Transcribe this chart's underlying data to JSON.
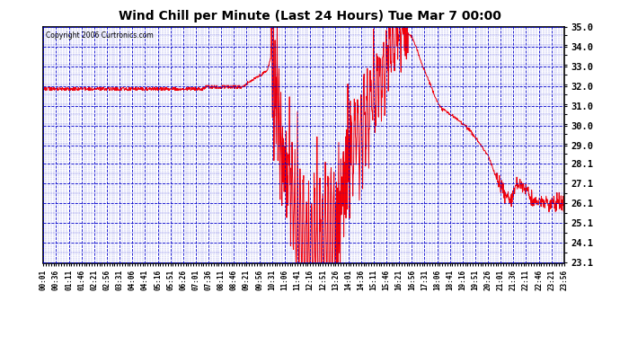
{
  "title": "Wind Chill per Minute (Last 24 Hours) Tue Mar 7 00:00",
  "copyright": "Copyright 2006 Curtronics.com",
  "line_color": "#ff0000",
  "bg_color": "#ffffff",
  "plot_bg_color": "#ffffff",
  "grid_color": "#0000cc",
  "border_color": "#000000",
  "ylim": [
    23.1,
    35.0
  ],
  "yticks": [
    23.1,
    24.1,
    25.1,
    26.1,
    27.1,
    28.1,
    29.0,
    30.0,
    31.0,
    32.0,
    33.0,
    34.0,
    35.0
  ],
  "xtick_labels": [
    "00:01",
    "00:36",
    "01:11",
    "01:46",
    "02:21",
    "02:56",
    "03:31",
    "04:06",
    "04:41",
    "05:16",
    "05:51",
    "06:26",
    "07:01",
    "07:36",
    "08:11",
    "08:46",
    "09:21",
    "09:56",
    "10:31",
    "11:06",
    "11:41",
    "12:16",
    "12:51",
    "13:26",
    "14:01",
    "14:36",
    "15:11",
    "15:46",
    "16:21",
    "16:56",
    "17:31",
    "18:06",
    "18:41",
    "19:16",
    "19:51",
    "20:26",
    "21:01",
    "21:36",
    "22:11",
    "22:46",
    "23:21",
    "23:56"
  ],
  "n_points": 1440,
  "title_fontsize": 11
}
